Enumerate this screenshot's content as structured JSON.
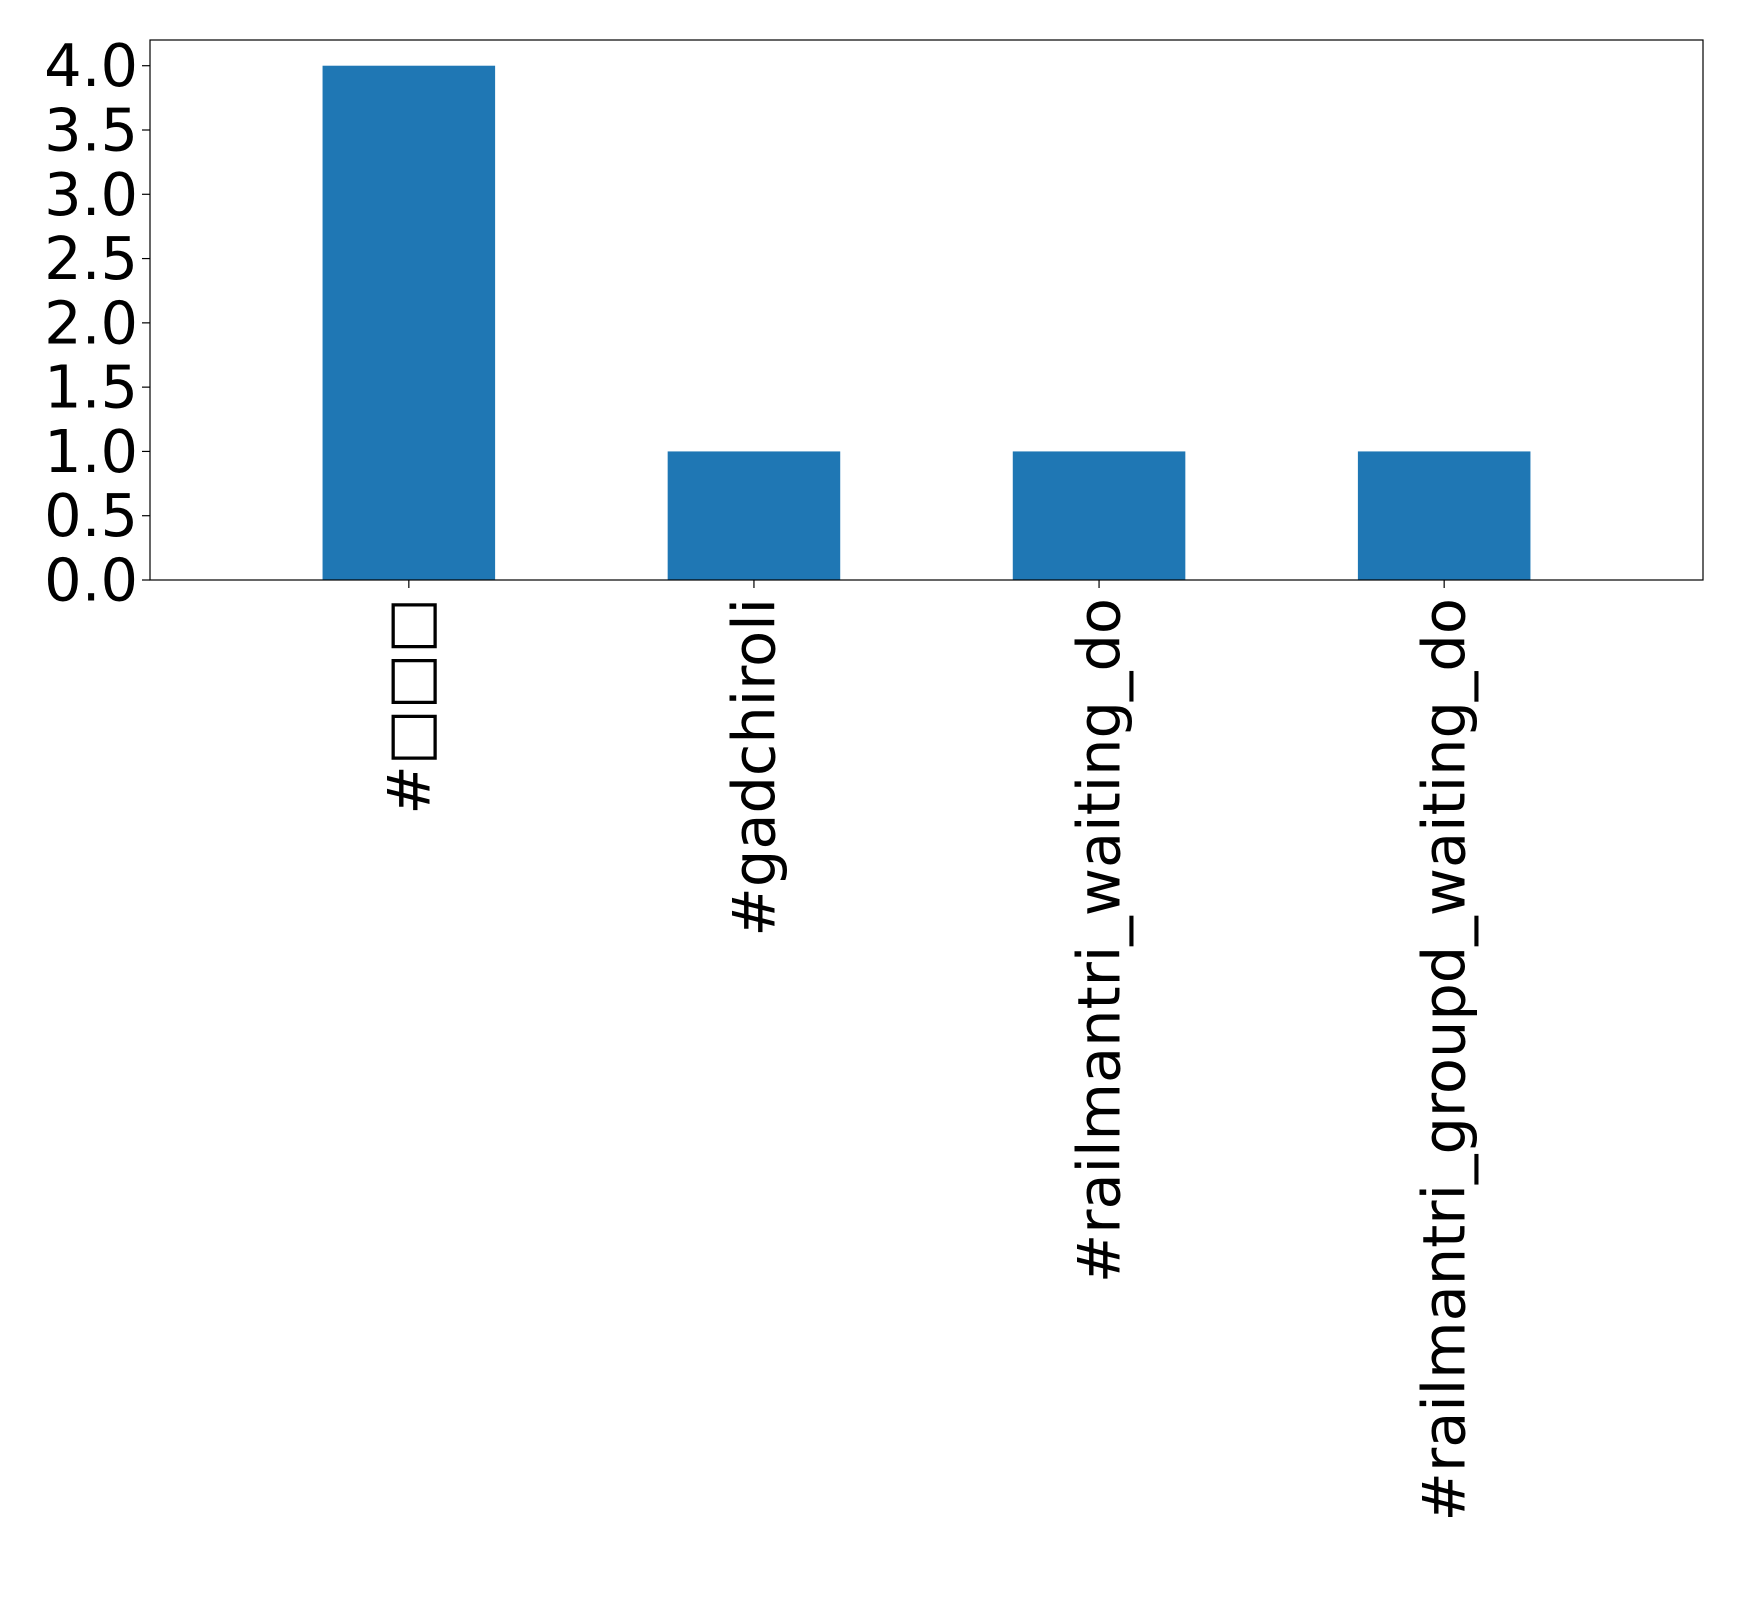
{
  "chart_data": {
    "type": "bar",
    "categories": [
      "#□□□",
      "#gadchiroli",
      "#railmantri_waiting_do",
      "#railmantri_groupd_waiting_do"
    ],
    "values": [
      4,
      1,
      1,
      1
    ],
    "title": "",
    "xlabel": "",
    "ylabel": "",
    "ylim": [
      0,
      4.2
    ],
    "yticks": [
      "0.0",
      "0.5",
      "1.0",
      "1.5",
      "2.0",
      "2.5",
      "3.0",
      "3.5",
      "4.0"
    ],
    "bar_color": "#1f77b4",
    "grid": false,
    "legend": false
  }
}
